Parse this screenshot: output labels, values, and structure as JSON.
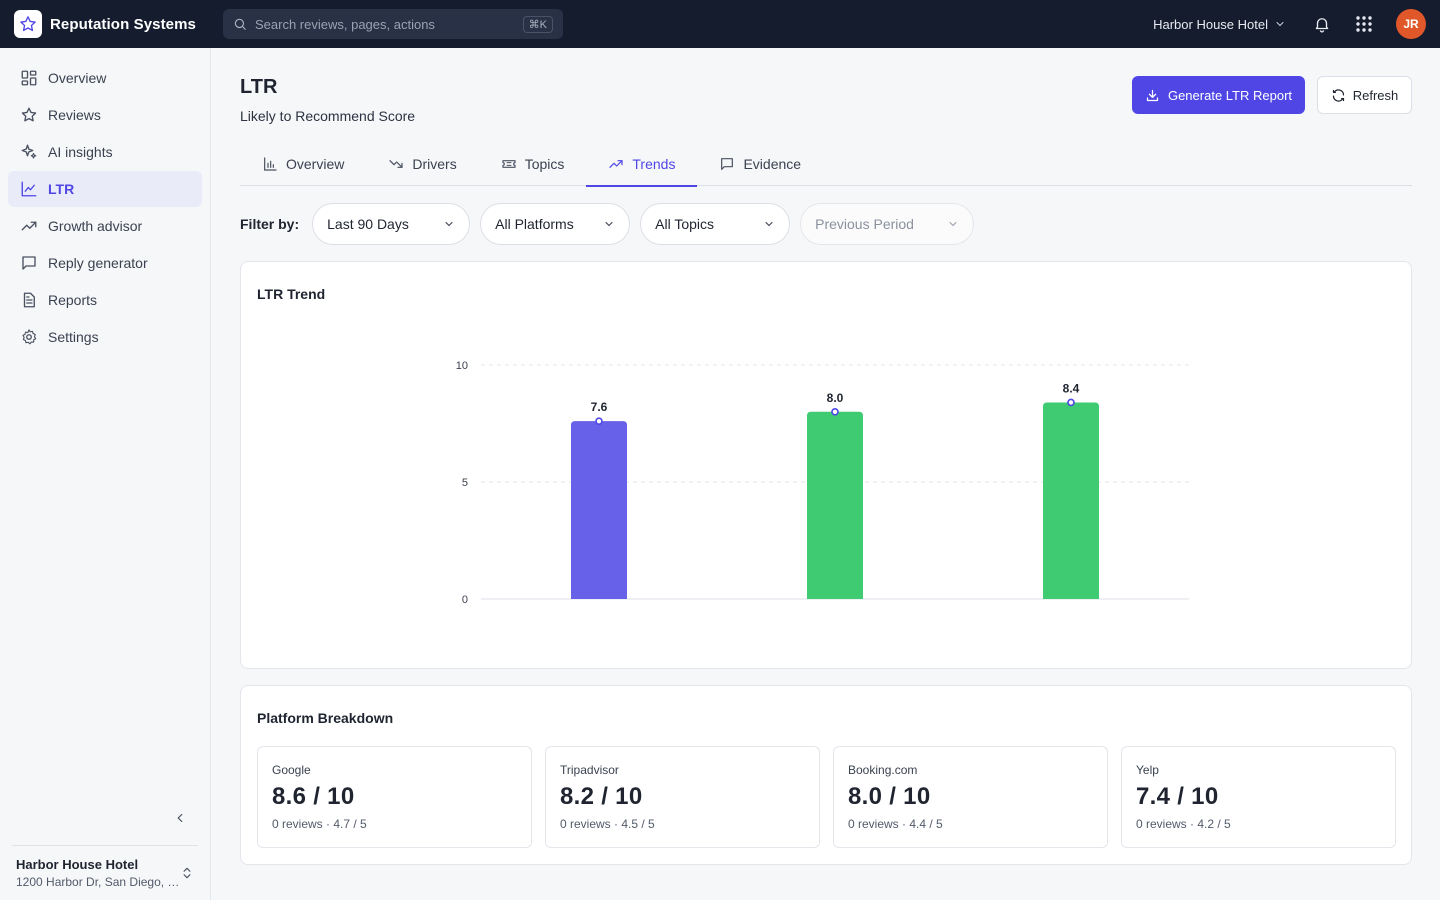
{
  "app": {
    "name": "Reputation Systems"
  },
  "search": {
    "placeholder": "Search reviews, pages, actions",
    "shortcut": "⌘K"
  },
  "topbar": {
    "hotel": "Harbor House Hotel",
    "avatar_initials": "JR"
  },
  "sidebar": {
    "items": [
      {
        "label": "Overview",
        "icon": "grid-icon",
        "active": false
      },
      {
        "label": "Reviews",
        "icon": "star-icon",
        "active": false
      },
      {
        "label": "AI insights",
        "icon": "sparkle-icon",
        "active": false
      },
      {
        "label": "LTR",
        "icon": "line-chart-icon",
        "active": true
      },
      {
        "label": "Growth advisor",
        "icon": "trending-up-icon",
        "active": false
      },
      {
        "label": "Reply generator",
        "icon": "message-icon",
        "active": false
      },
      {
        "label": "Reports",
        "icon": "document-icon",
        "active": false
      },
      {
        "label": "Settings",
        "icon": "gear-icon",
        "active": false
      }
    ],
    "property": {
      "name": "Harbor House Hotel",
      "address": "1200 Harbor Dr, San Diego, CA"
    }
  },
  "header": {
    "title": "LTR",
    "subtitle": "Likely to Recommend Score",
    "generate_label": "Generate LTR Report",
    "refresh_label": "Refresh"
  },
  "tabs": [
    {
      "label": "Overview",
      "icon": "bar-chart-icon",
      "active": false
    },
    {
      "label": "Drivers",
      "icon": "trending-down-icon",
      "active": false
    },
    {
      "label": "Topics",
      "icon": "ticket-icon",
      "active": false
    },
    {
      "label": "Trends",
      "icon": "trending-up-icon",
      "active": true
    },
    {
      "label": "Evidence",
      "icon": "message-icon",
      "active": false
    }
  ],
  "filters": {
    "label": "Filter by:",
    "period": "Last 90 Days",
    "platform": "All Platforms",
    "topic": "All Topics",
    "comparison": "Previous Period"
  },
  "chart_card": {
    "title": "LTR Trend"
  },
  "chart_data": {
    "type": "bar",
    "categories": [
      "",
      "",
      ""
    ],
    "values": [
      7.6,
      8.0,
      8.4
    ],
    "value_labels": [
      "7.6",
      "8.0",
      "8.4"
    ],
    "bar_colors": [
      "#6760e8",
      "#3ecb72",
      "#3ecb72"
    ],
    "marker_color": "#4f46e5",
    "ylim": [
      0,
      10
    ],
    "yticks": [
      0,
      5,
      10
    ],
    "grid": true,
    "title": "",
    "xlabel": "",
    "ylabel": ""
  },
  "breakdown": {
    "title": "Platform Breakdown",
    "platforms": [
      {
        "name": "Google",
        "score": "8.6 / 10",
        "meta": "0 reviews · 4.7 / 5"
      },
      {
        "name": "Tripadvisor",
        "score": "8.2 / 10",
        "meta": "0 reviews · 4.5 / 5"
      },
      {
        "name": "Booking.com",
        "score": "8.0 / 10",
        "meta": "0 reviews · 4.4 / 5"
      },
      {
        "name": "Yelp",
        "score": "7.4 / 10",
        "meta": "0 reviews · 4.2 / 5"
      }
    ]
  },
  "colors": {
    "accent": "#4f46e5",
    "topbar": "#151c2e",
    "positive": "#3ecb72"
  }
}
